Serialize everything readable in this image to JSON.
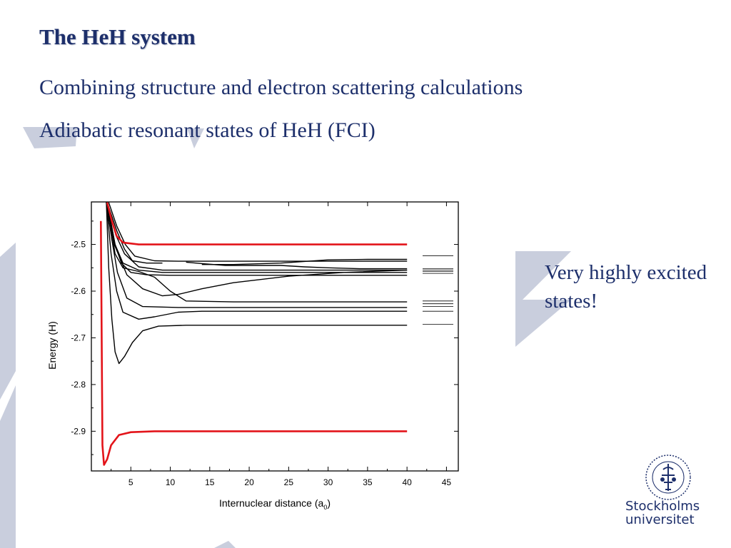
{
  "slide": {
    "title": "The HeH system",
    "line1": "Combining structure and electron scattering calculations",
    "line2": "Adiabatic resonant states of HeH (FCI)",
    "callout": "Very highly excited states!"
  },
  "logo": {
    "name_line1": "Stockholms",
    "name_line2": "universitet"
  },
  "colors": {
    "text": "#1d2f6b",
    "decoration": "#c9cedd",
    "highlight": "#e3141a",
    "curve": "#000000"
  },
  "chart_data": {
    "type": "line",
    "xlabel": "Internuclear distance (a",
    "xlabel_subscript": "0",
    "xlabel_suffix": ")",
    "ylabel": "Energy (H)",
    "xlim": [
      0,
      46.5
    ],
    "ylim": [
      -2.985,
      -2.409
    ],
    "x_ticks": [
      5,
      10,
      15,
      20,
      25,
      30,
      35,
      40,
      45
    ],
    "y_ticks": [
      -2.9,
      -2.8,
      -2.7,
      -2.6,
      -2.5
    ],
    "grid": false,
    "series": [
      {
        "color": "highlight",
        "points": [
          [
            1.2,
            -2.45
          ],
          [
            1.4,
            -2.93
          ],
          [
            1.6,
            -2.972
          ],
          [
            2.0,
            -2.96
          ],
          [
            2.5,
            -2.93
          ],
          [
            3.5,
            -2.908
          ],
          [
            5,
            -2.902
          ],
          [
            8,
            -2.9
          ],
          [
            40,
            -2.9
          ]
        ]
      },
      {
        "color": "highlight",
        "points": [
          [
            2.0,
            -2.41
          ],
          [
            2.6,
            -2.45
          ],
          [
            3.2,
            -2.482
          ],
          [
            4,
            -2.496
          ],
          [
            6,
            -2.5
          ],
          [
            40,
            -2.5
          ]
        ]
      },
      {
        "color": "curve",
        "points": [
          [
            1.9,
            -2.41
          ],
          [
            2.2,
            -2.55
          ],
          [
            2.6,
            -2.66
          ],
          [
            3.0,
            -2.73
          ],
          [
            3.5,
            -2.755
          ],
          [
            4.2,
            -2.74
          ],
          [
            5.2,
            -2.71
          ],
          [
            6.5,
            -2.685
          ],
          [
            8.5,
            -2.675
          ],
          [
            12,
            -2.673
          ],
          [
            40,
            -2.673
          ]
        ]
      },
      {
        "color": "curve",
        "points": [
          [
            1.9,
            -2.41
          ],
          [
            2.5,
            -2.52
          ],
          [
            3.2,
            -2.6
          ],
          [
            4,
            -2.645
          ],
          [
            6,
            -2.66
          ],
          [
            8,
            -2.655
          ],
          [
            11,
            -2.645
          ],
          [
            14,
            -2.643
          ],
          [
            40,
            -2.643
          ]
        ]
      },
      {
        "color": "curve",
        "points": [
          [
            1.9,
            -2.41
          ],
          [
            2.6,
            -2.49
          ],
          [
            3.3,
            -2.56
          ],
          [
            4.5,
            -2.615
          ],
          [
            6.5,
            -2.633
          ],
          [
            11,
            -2.635
          ],
          [
            40,
            -2.635
          ]
        ]
      },
      {
        "color": "curve",
        "points": [
          [
            2.0,
            -2.41
          ],
          [
            2.9,
            -2.5
          ],
          [
            4.5,
            -2.565
          ],
          [
            6.5,
            -2.595
          ],
          [
            9,
            -2.61
          ],
          [
            11,
            -2.607
          ],
          [
            14,
            -2.595
          ],
          [
            18,
            -2.582
          ],
          [
            25,
            -2.568
          ],
          [
            32,
            -2.56
          ],
          [
            40,
            -2.555
          ]
        ]
      },
      {
        "color": "curve",
        "points": [
          [
            2.0,
            -2.41
          ],
          [
            3.0,
            -2.52
          ],
          [
            4,
            -2.55
          ],
          [
            6,
            -2.558
          ],
          [
            8,
            -2.57
          ],
          [
            10,
            -2.6
          ],
          [
            12,
            -2.621
          ],
          [
            18,
            -2.623
          ],
          [
            40,
            -2.623
          ]
        ]
      },
      {
        "color": "curve",
        "points": [
          [
            2.0,
            -2.41
          ],
          [
            3.0,
            -2.5
          ],
          [
            3.8,
            -2.54
          ],
          [
            5,
            -2.56
          ],
          [
            7,
            -2.565
          ],
          [
            10,
            -2.566
          ],
          [
            40,
            -2.566
          ]
        ]
      },
      {
        "color": "curve",
        "points": [
          [
            2.0,
            -2.41
          ],
          [
            3.0,
            -2.5
          ],
          [
            4,
            -2.54
          ],
          [
            6,
            -2.555
          ],
          [
            9,
            -2.56
          ],
          [
            40,
            -2.56
          ]
        ]
      },
      {
        "color": "curve",
        "points": [
          [
            2.0,
            -2.41
          ],
          [
            3.1,
            -2.48
          ],
          [
            4.2,
            -2.52
          ],
          [
            6,
            -2.548
          ],
          [
            9,
            -2.555
          ],
          [
            40,
            -2.555
          ]
        ]
      },
      {
        "color": "curve",
        "points": [
          [
            2.0,
            -2.41
          ],
          [
            3.2,
            -2.47
          ],
          [
            4.2,
            -2.51
          ],
          [
            5.2,
            -2.535
          ],
          [
            7,
            -2.54
          ],
          [
            9,
            -2.54
          ]
        ]
      },
      {
        "color": "curve",
        "points": [
          [
            12,
            -2.538
          ],
          [
            14,
            -2.541
          ],
          [
            17,
            -2.545
          ],
          [
            21,
            -2.545
          ],
          [
            24,
            -2.545
          ],
          [
            27,
            -2.548
          ],
          [
            30,
            -2.55
          ],
          [
            34,
            -2.552
          ],
          [
            40,
            -2.552
          ]
        ]
      },
      {
        "color": "curve",
        "points": [
          [
            2.2,
            -2.41
          ],
          [
            3.2,
            -2.46
          ],
          [
            4.3,
            -2.5
          ],
          [
            5.5,
            -2.525
          ],
          [
            8,
            -2.535
          ],
          [
            11,
            -2.536
          ],
          [
            16,
            -2.536
          ],
          [
            40,
            -2.536
          ]
        ]
      },
      {
        "color": "curve",
        "points": [
          [
            14,
            -2.543
          ],
          [
            18,
            -2.543
          ],
          [
            24,
            -2.54
          ],
          [
            30,
            -2.533
          ],
          [
            35,
            -2.532
          ],
          [
            40,
            -2.532
          ]
        ]
      }
    ],
    "asymptote_levels": [
      -2.524,
      -2.552,
      -2.555,
      -2.558,
      -2.562,
      -2.621,
      -2.627,
      -2.633,
      -2.643,
      -2.671
    ]
  }
}
